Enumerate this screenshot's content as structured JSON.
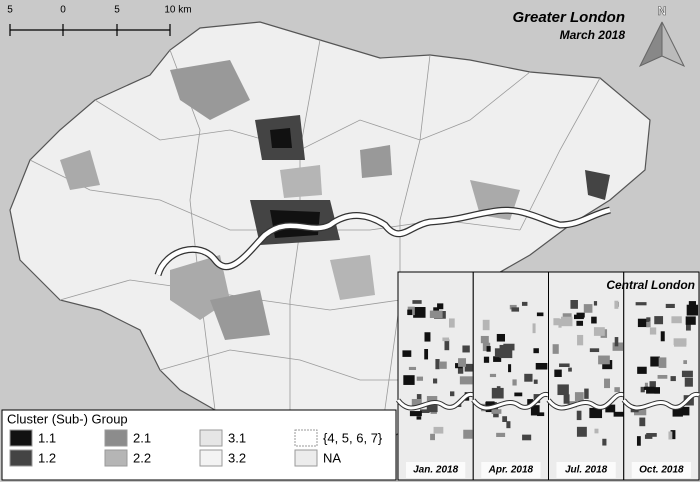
{
  "header": {
    "title": "Greater London",
    "subtitle": "March 2018",
    "north": "N"
  },
  "scale_bar": {
    "labels": [
      "5",
      "0",
      "5",
      "10 km"
    ]
  },
  "legend": {
    "title": "Cluster (Sub-) Group",
    "items": [
      {
        "label": "1.1",
        "color": "#111111"
      },
      {
        "label": "1.2",
        "color": "#444444"
      },
      {
        "label": "2.1",
        "color": "#8c8c8c"
      },
      {
        "label": "2.2",
        "color": "#b5b5b5"
      },
      {
        "label": "3.1",
        "color": "#e6e6e6"
      },
      {
        "label": "3.2",
        "color": "#f3f3f3"
      },
      {
        "label": "{4, 5, 6, 7}",
        "color": "#ffffff"
      },
      {
        "label": "NA",
        "color": "#ececec"
      }
    ]
  },
  "inset": {
    "title": "Central London",
    "panels": [
      "Jan. 2018",
      "Apr. 2018",
      "Jul. 2018",
      "Oct. 2018"
    ]
  }
}
